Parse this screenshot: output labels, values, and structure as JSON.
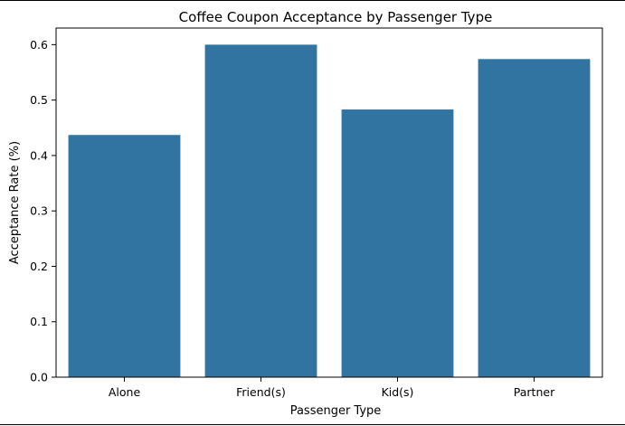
{
  "chart_data": {
    "type": "bar",
    "title": "Coffee Coupon Acceptance by Passenger Type",
    "xlabel": "Passenger Type",
    "ylabel": "Acceptance Rate (%)",
    "categories": [
      "Alone",
      "Friend(s)",
      "Kid(s)",
      "Partner"
    ],
    "values": [
      0.437,
      0.6,
      0.483,
      0.574
    ],
    "ylim": [
      0,
      0.63
    ],
    "yticks": [
      0.0,
      0.1,
      0.2,
      0.3,
      0.4,
      0.5,
      0.6
    ],
    "ytick_labels": [
      "0.0",
      "0.1",
      "0.2",
      "0.3",
      "0.4",
      "0.5",
      "0.6"
    ],
    "bar_color": "#3274a1",
    "grid": false,
    "legend": "none"
  }
}
